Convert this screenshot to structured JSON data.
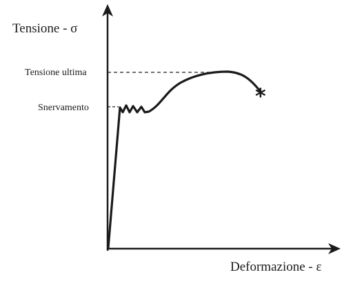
{
  "diagram": {
    "y_axis_label": "Tensione - σ",
    "x_axis_label": "Deformazione - ε",
    "levels": [
      {
        "label": "Tensione ultima"
      },
      {
        "label": "Snervamento"
      }
    ],
    "fracture_marker": "*",
    "colors": {
      "ink": "#1a1a1a",
      "background": "#ffffff"
    }
  }
}
